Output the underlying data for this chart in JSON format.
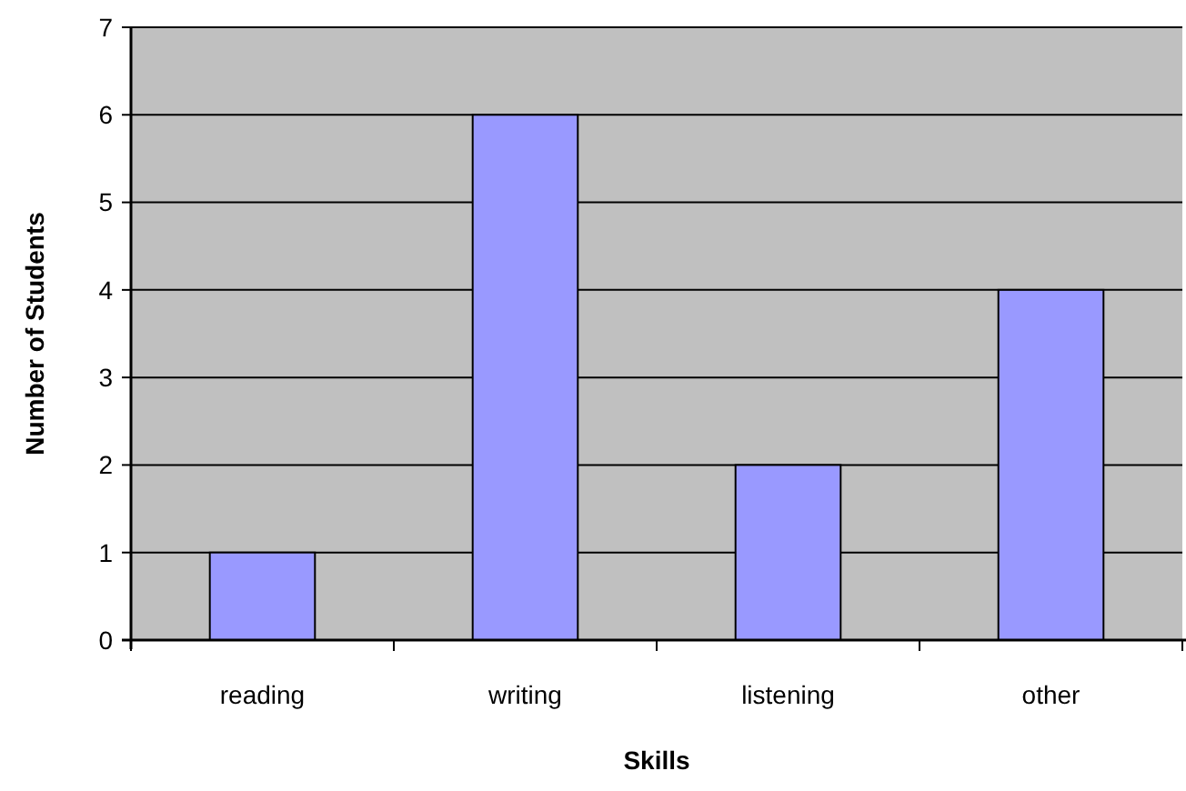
{
  "chart_data": {
    "type": "bar",
    "xlabel": "Skills",
    "ylabel": "Number of Students",
    "categories": [
      "reading",
      "writing",
      "listening",
      "other"
    ],
    "values": [
      1,
      6,
      2,
      4
    ],
    "color": "#9999ff",
    "ylim": [
      0,
      7
    ],
    "yticks": [
      0,
      1,
      2,
      3,
      4,
      5,
      6,
      7
    ],
    "grid": "y"
  }
}
